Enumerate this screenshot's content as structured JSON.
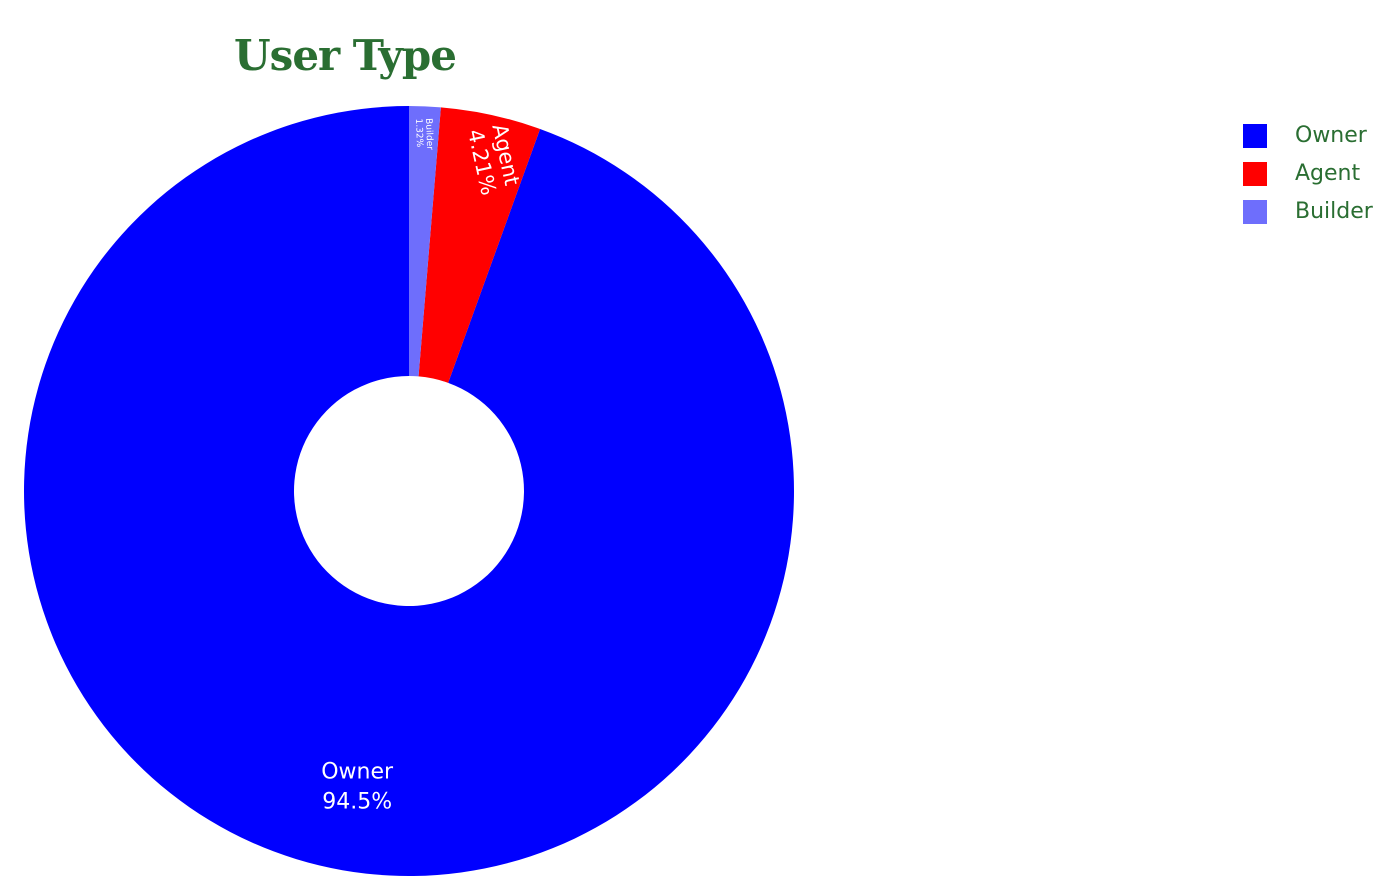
{
  "chart_data": {
    "type": "pie",
    "hole": true,
    "title": "User Type",
    "labels": [
      "Owner",
      "Agent",
      "Builder"
    ],
    "values": [
      94.5,
      4.21,
      1.32
    ],
    "value_labels": [
      "94.5%",
      "4.21%",
      "1.32%"
    ],
    "colors": [
      "#0000ff",
      "#ff0000",
      "#6e6efc"
    ],
    "legend_placement": "top-right"
  },
  "colors": {
    "text_accent": "#2a6e32",
    "slice_label_text": "#ffffff"
  }
}
